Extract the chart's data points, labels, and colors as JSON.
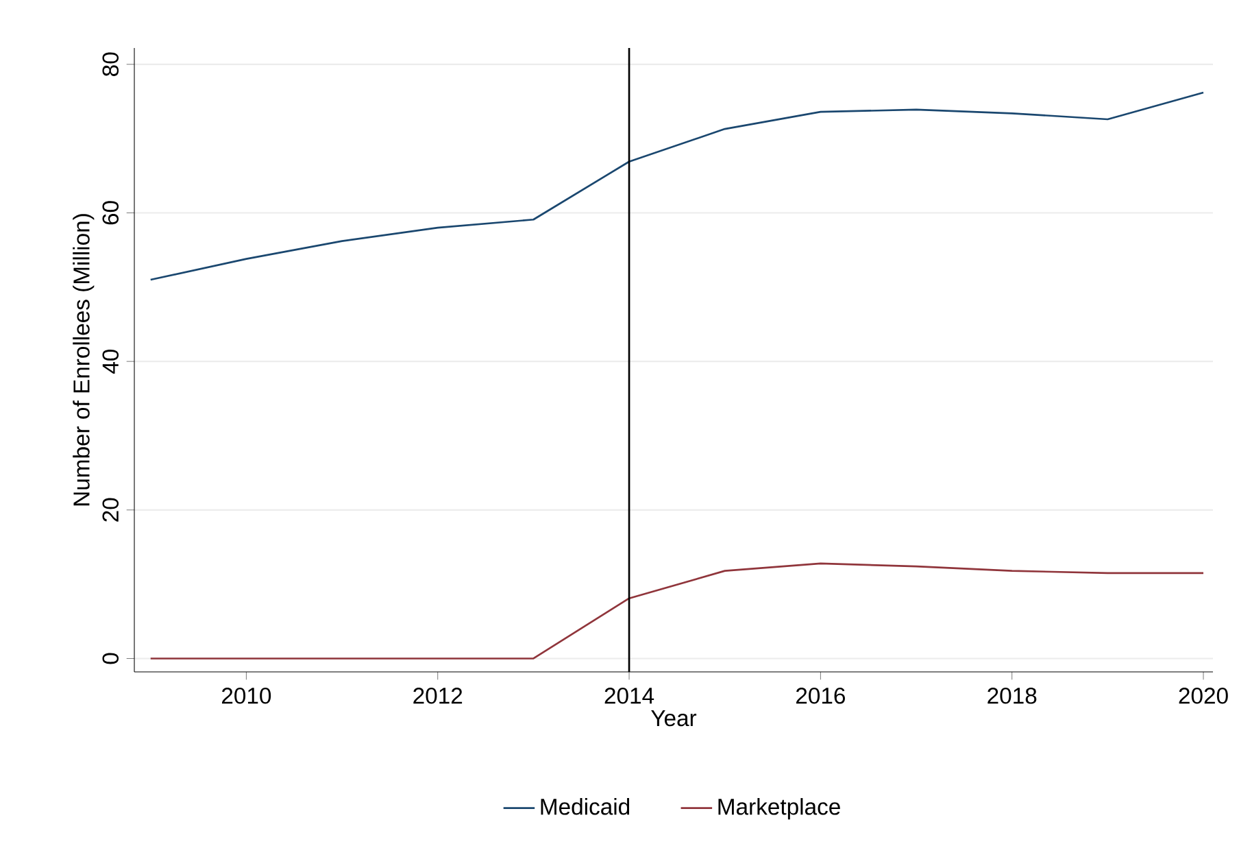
{
  "chart_data": {
    "type": "line",
    "xlabel": "Year",
    "ylabel": "Number of Enrollees (Million)",
    "x": [
      2009,
      2010,
      2011,
      2012,
      2013,
      2014,
      2015,
      2016,
      2017,
      2018,
      2019,
      2020
    ],
    "series": [
      {
        "name": "Medicaid",
        "color": "#1a476f",
        "values": [
          51.0,
          53.8,
          56.2,
          58.0,
          59.1,
          66.9,
          71.3,
          73.6,
          73.9,
          73.4,
          72.6,
          76.2
        ]
      },
      {
        "name": "Marketplace",
        "color": "#90353b",
        "values": [
          0,
          0,
          0,
          0,
          0,
          8.1,
          11.8,
          12.8,
          12.4,
          11.8,
          11.5,
          11.5
        ]
      }
    ],
    "xlim": [
      2008.83,
      2020.1
    ],
    "ylim": [
      -1.8,
      82.2
    ],
    "xticks": [
      2010,
      2012,
      2014,
      2016,
      2018,
      2020
    ],
    "yticks": [
      0,
      20,
      40,
      60,
      80
    ],
    "ref_lines": [
      {
        "axis": "x",
        "value": 2014,
        "color": "#000000"
      }
    ],
    "grid": "y",
    "legend": "bottom",
    "marker": "none",
    "line_style": "solid"
  }
}
